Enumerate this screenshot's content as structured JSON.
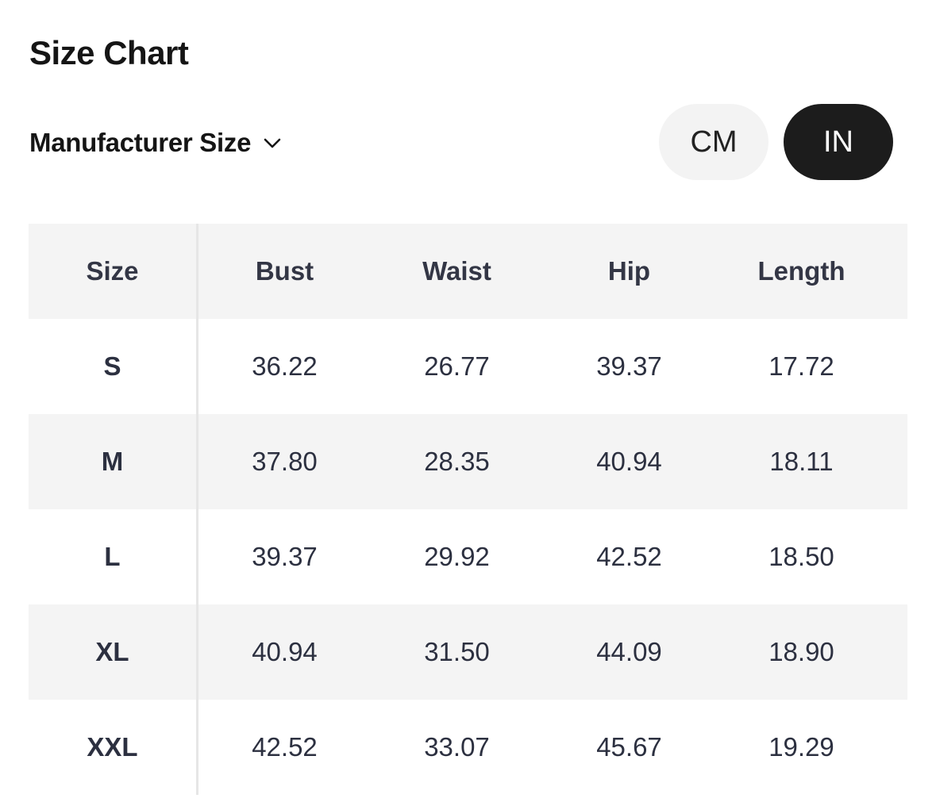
{
  "title": "Size Chart",
  "size_selector": {
    "label": "Manufacturer Size",
    "icon": "chevron-down-icon"
  },
  "unit_toggle": {
    "options": [
      "CM",
      "IN"
    ],
    "selected": "IN"
  },
  "colors": {
    "active_bg": "#1c1c1c",
    "inactive_bg": "#f3f3f3",
    "row_shade": "#f4f4f4",
    "text": "#2c3040"
  },
  "table": {
    "headers": [
      "Size",
      "Bust",
      "Waist",
      "Hip",
      "Length"
    ],
    "rows": [
      [
        "S",
        "36.22",
        "26.77",
        "39.37",
        "17.72"
      ],
      [
        "M",
        "37.80",
        "28.35",
        "40.94",
        "18.11"
      ],
      [
        "L",
        "39.37",
        "29.92",
        "42.52",
        "18.50"
      ],
      [
        "XL",
        "40.94",
        "31.50",
        "44.09",
        "18.90"
      ],
      [
        "XXL",
        "42.52",
        "33.07",
        "45.67",
        "19.29"
      ]
    ]
  }
}
